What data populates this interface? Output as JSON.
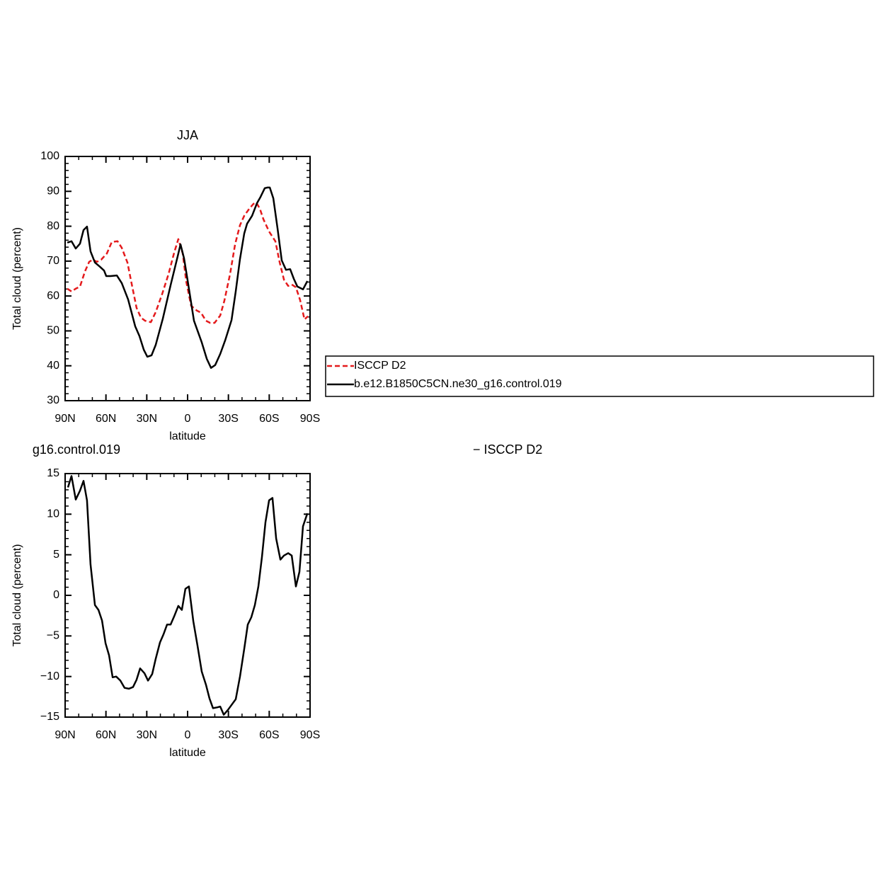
{
  "chart_data": [
    {
      "type": "line",
      "title": "JJA",
      "xlabel": "latitude",
      "ylabel": "Total cloud (percent)",
      "xlim": [
        90,
        -90
      ],
      "xticks": [
        {
          "value": 90,
          "label": "90N"
        },
        {
          "value": 60,
          "label": "60N"
        },
        {
          "value": 30,
          "label": "30N"
        },
        0,
        {
          "value": -30,
          "label": "30S"
        },
        {
          "value": -60,
          "label": "60S"
        },
        {
          "value": -90,
          "label": "90S"
        }
      ],
      "xminorticks": [
        90,
        80,
        70,
        60,
        50,
        40,
        30,
        20,
        10,
        0,
        -10,
        -20,
        -30,
        -40,
        -50,
        -60,
        -70,
        -80,
        -90
      ],
      "ylim": [
        30,
        100
      ],
      "yticks": [
        30,
        40,
        50,
        60,
        70,
        80,
        90,
        100
      ],
      "yminorticks": [
        30,
        32,
        34,
        36,
        38,
        40,
        42,
        44,
        46,
        48,
        50,
        52,
        54,
        56,
        58,
        60,
        62,
        64,
        66,
        68,
        70,
        72,
        74,
        76,
        78,
        80,
        82,
        84,
        86,
        88,
        90,
        92,
        94,
        96,
        98,
        100
      ],
      "legend": "right",
      "series": [
        {
          "name": "ISCCP D2",
          "color": "#e41a1c",
          "linestyle": "dashed",
          "x": [
            88.4,
            85.3,
            82.2,
            79.1,
            75.4,
            72.3,
            69.7,
            66.6,
            63.5,
            59.3,
            55.7,
            51.5,
            48.4,
            44.2,
            41.1,
            37.5,
            34.3,
            31.2,
            27,
            23.4,
            18.7,
            14,
            9.9,
            6.8,
            3.6,
            1,
            -2.6,
            -6.8,
            -9.9,
            -13.5,
            -16.6,
            -19.8,
            -24,
            -27,
            -31.2,
            -34.9,
            -38.5,
            -41.6,
            -45.3,
            -48.4,
            -50.5,
            -53.1,
            -55.7,
            -59.9,
            -64.5,
            -67.6,
            -70.8,
            -73.9,
            -76.5,
            -79.6,
            -82.7,
            -85.9,
            -88.5
          ],
          "values": [
            62.1,
            61.3,
            62.1,
            62.7,
            67.1,
            69.8,
            70.4,
            69.8,
            70.4,
            72.2,
            75.5,
            75.7,
            73.8,
            69.6,
            63.5,
            56.6,
            53.8,
            52.9,
            52.5,
            55.4,
            60.6,
            66.3,
            72.4,
            76.3,
            72.2,
            64.1,
            57.2,
            55.8,
            55.2,
            52.9,
            52.3,
            52.3,
            54.4,
            58.6,
            66.3,
            74.8,
            80.3,
            83,
            85,
            86.4,
            86.8,
            85,
            82,
            78.5,
            75.7,
            69.8,
            64.7,
            62.9,
            63.3,
            62.5,
            58.8,
            53.3,
            54.2
          ]
        },
        {
          "name": "b.e12.B1850C5CN.ne30_g16.control.019",
          "color": "#000000",
          "linestyle": "solid",
          "x": [
            88.4,
            85.3,
            82.2,
            79.1,
            76.5,
            73.9,
            71.3,
            68.1,
            64.5,
            61.4,
            59.8,
            56.7,
            52,
            48.4,
            43.7,
            38.5,
            35.4,
            32.2,
            29.6,
            26.5,
            23.4,
            18.2,
            12.5,
            7.3,
            5.2,
            2.6,
            0,
            -4.7,
            -10.4,
            -14.1,
            -17.2,
            -20.3,
            -24,
            -27.6,
            -32.3,
            -35.4,
            -38.5,
            -41.6,
            -43.7,
            -47.4,
            -51,
            -53.6,
            -56.7,
            -58.8,
            -60.4,
            -63,
            -66.1,
            -69.2,
            -72.3,
            -75.4,
            -78.1,
            -80.7,
            -84.8,
            -88
          ],
          "values": [
            75.3,
            75.7,
            73.6,
            75,
            78.9,
            79.9,
            72.8,
            69.6,
            68.4,
            67.3,
            65.7,
            65.7,
            65.9,
            63.7,
            59,
            51.3,
            48.5,
            44.6,
            42.6,
            43,
            46,
            53.5,
            63.1,
            71.4,
            74.8,
            70.8,
            64.5,
            52.9,
            46.7,
            42,
            39.4,
            40.2,
            43.4,
            47.3,
            53.1,
            61.3,
            70.6,
            77.9,
            80.7,
            83,
            86.6,
            88.4,
            90.9,
            91.1,
            91.1,
            88,
            79.3,
            70.2,
            67.5,
            67.7,
            64.9,
            62.7,
            61.9,
            64.3
          ]
        }
      ]
    },
    {
      "type": "line",
      "title_parts": [
        "g16.control.019",
        "− ISCCP D2"
      ],
      "xlabel": "latitude",
      "ylabel": "Total cloud (percent)",
      "xlim": [
        90,
        -90
      ],
      "xticks": [
        {
          "value": 90,
          "label": "90N"
        },
        {
          "value": 60,
          "label": "60N"
        },
        {
          "value": 30,
          "label": "30N"
        },
        0,
        {
          "value": -30,
          "label": "30S"
        },
        {
          "value": -60,
          "label": "60S"
        },
        {
          "value": -90,
          "label": "90S"
        }
      ],
      "xminorticks": [
        90,
        80,
        70,
        60,
        50,
        40,
        30,
        20,
        10,
        0,
        -10,
        -20,
        -30,
        -40,
        -50,
        -60,
        -70,
        -80,
        -90
      ],
      "ylim": [
        -15,
        15
      ],
      "yticks": [
        {
          "value": -15,
          "label": "−15"
        },
        {
          "value": -10,
          "label": "−10"
        },
        {
          "value": -5,
          "label": "−5"
        },
        0,
        5,
        10,
        15
      ],
      "yminorticks": [
        -15,
        -14,
        -13,
        -12,
        -11,
        -10,
        -9,
        -8,
        -7,
        -6,
        -5,
        -4,
        -3,
        -2,
        -1,
        0,
        1,
        2,
        3,
        4,
        5,
        6,
        7,
        8,
        9,
        10,
        11,
        12,
        13,
        14,
        15
      ],
      "series": [
        {
          "color": "#000000",
          "linestyle": "solid",
          "x": [
            87.9,
            85.3,
            82.2,
            79.1,
            76.5,
            73.9,
            71.3,
            68.1,
            65.5,
            62.9,
            60.3,
            57.7,
            55.1,
            52.5,
            49.4,
            46.3,
            43.2,
            40.1,
            37.5,
            34.9,
            31.7,
            29.1,
            26,
            23.4,
            20.3,
            17.7,
            15.1,
            12.5,
            9.9,
            6.8,
            4.2,
            1.6,
            -1,
            -4.2,
            -7.3,
            -10.4,
            -13.5,
            -16.1,
            -18.7,
            -21.9,
            -24,
            -26.6,
            -29.7,
            -32.3,
            -35.4,
            -38.5,
            -41.6,
            -44.2,
            -46.8,
            -49.4,
            -52,
            -54.6,
            -57.2,
            -59.9,
            -62.4,
            -65.1,
            -68.2,
            -70.8,
            -73.9,
            -76.5,
            -79.6,
            -82.2,
            -84.8,
            -88
          ],
          "values": [
            13.3,
            14.7,
            11.8,
            12.9,
            14.1,
            11.7,
            3.8,
            -1.2,
            -1.8,
            -3.1,
            -5.9,
            -7.4,
            -10.1,
            -10,
            -10.5,
            -11.4,
            -11.5,
            -11.3,
            -10.4,
            -9,
            -9.6,
            -10.5,
            -9.7,
            -7.8,
            -5.8,
            -4.8,
            -3.6,
            -3.6,
            -2.6,
            -1.3,
            -1.8,
            0.8,
            1.1,
            -3.2,
            -6.2,
            -9.4,
            -11,
            -12.7,
            -13.9,
            -13.8,
            -13.7,
            -14.7,
            -14.1,
            -13.5,
            -12.8,
            -10,
            -6.6,
            -3.6,
            -2.7,
            -1.2,
            1.1,
            4.7,
            9,
            11.7,
            12,
            7,
            4.4,
            4.9,
            5.2,
            4.9,
            1.1,
            2.9,
            8.5,
            10.1
          ]
        }
      ]
    }
  ]
}
